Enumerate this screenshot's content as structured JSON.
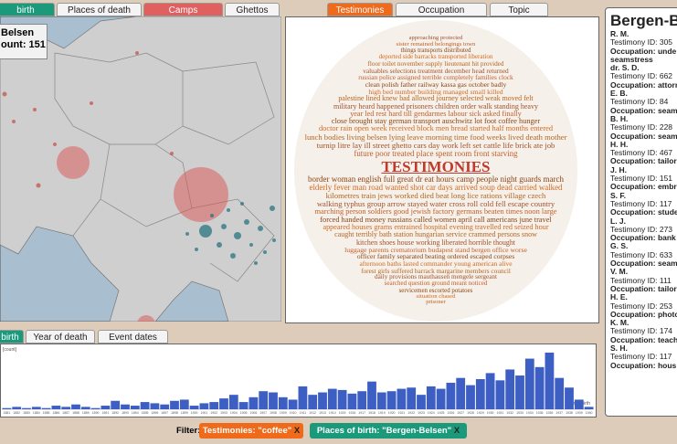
{
  "top_tabs_left": [
    "birth",
    "Places of death",
    "Camps",
    "Ghettos"
  ],
  "map_box": {
    "place": "Belsen",
    "count": "ount: 151"
  },
  "center_tabs": [
    "Testimonies",
    "Occupation",
    "Topic"
  ],
  "word_cloud": {
    "title": "TESTIMONIES",
    "lines": [
      "approaching protected",
      "sister remained belongings town",
      "things transports distributed",
      "deported side barracks transported liberation",
      "floor toilet november supply lieutenant hit provided",
      "valuables selections treatment december head returned",
      "russian police assigned terrible completely families clock",
      "clean polish father railway kassa gas october badly",
      "high bed number building managed small killed",
      "palestine lined knew bad allowed journey selected weak moved felt",
      "military heard happened prisoners children order walk standing heavy",
      "year led rest hard till gendarmes labour sick asked finally",
      "close brought stay german transport auschwitz lot foot coffee hunger",
      "doctor rain open week received block men bread started half months entered",
      "lunch bodies living belsen lying leave morning time food weeks lived death mother",
      "turnip litre lay ill street ghetto cars day work left set cattle life brick ate job",
      "future poor treated place spent room front starving",
      "border woman english full great dr eat hours camp people night guards march",
      "elderly fever man road wanted shot car days arrived soup dead carried walked",
      "kilometres train jews worked died beat long lice rations village czech",
      "walking typhus group arrow stayed water cross roll cold fell escape country",
      "marching person soldiers good jewish factory germans beaten times noon large",
      "forced handed money russians called women april call americans june travel",
      "appeared houses grams entrained hospital evening travelled red seized hour",
      "caught terribly bath station hungarian service crammed persons snow",
      "kitchen shoes house working liberated horrible thought",
      "luggage parents crematorium budapest stand bergen office worse",
      "officer family separated beating ordered escaped corpses",
      "afternoon baths lasted commander young american alive",
      "forest girls suffered barrack margarine members council",
      "daily provisions mauthausen mengele sergeant",
      "searched question ground meant noticed",
      "servicemen escorted potatoes",
      "situation chased",
      "prisoner"
    ]
  },
  "bottom_tabs": [
    "birth",
    "Year of death",
    "Event dates"
  ],
  "chart_data": {
    "type": "bar",
    "y_label": "[count]",
    "x_label": "Year of birth",
    "color": "#3d5fc4",
    "ylim": [
      0,
      50
    ],
    "categories": [
      "1881",
      "1882",
      "1883",
      "1884",
      "1885",
      "1886",
      "1887",
      "1888",
      "1889",
      "1890",
      "1891",
      "1892",
      "1893",
      "1894",
      "1895",
      "1896",
      "1897",
      "1898",
      "1899",
      "1900",
      "1901",
      "1902",
      "1903",
      "1904",
      "1905",
      "1906",
      "1907",
      "1908",
      "1909",
      "1910",
      "1911",
      "1912",
      "1913",
      "1914",
      "1915",
      "1916",
      "1917",
      "1918",
      "1919",
      "1920",
      "1921",
      "1922",
      "1923",
      "1924",
      "1925",
      "1926",
      "1927",
      "1928",
      "1929",
      "1930",
      "1931",
      "1932",
      "1933",
      "1934",
      "1935",
      "1936",
      "1937",
      "1938",
      "1939",
      "1940"
    ],
    "values": [
      1,
      2,
      1,
      2,
      1,
      3,
      2,
      4,
      2,
      1,
      3,
      7,
      4,
      3,
      6,
      5,
      4,
      7,
      8,
      3,
      5,
      6,
      9,
      12,
      6,
      10,
      15,
      14,
      10,
      8,
      19,
      12,
      14,
      17,
      16,
      13,
      15,
      23,
      14,
      15,
      17,
      18,
      12,
      19,
      17,
      22,
      26,
      20,
      25,
      30,
      24,
      33,
      28,
      42,
      35,
      47,
      26,
      18,
      8,
      2
    ]
  },
  "filter": {
    "label": "Filter:",
    "chips": [
      {
        "text": "Testimonies: \"coffee\"",
        "close": "X"
      },
      {
        "text": "Places of birth: \"Bergen-Belsen\"",
        "close": "X"
      }
    ]
  },
  "detail": {
    "title": "Bergen-Bel",
    "items": [
      {
        "name": "R. M.",
        "id": "Testimony ID: 305",
        "occupation": "Occupation: unde",
        "extra": "seamstress"
      },
      {
        "name": "dr. S. D.",
        "id": "Testimony ID: 662",
        "occupation": "Occupation: attorn"
      },
      {
        "name": "E. B.",
        "id": "Testimony ID: 84",
        "occupation": "Occupation: seam"
      },
      {
        "name": "B. H.",
        "id": "Testimony ID: 228",
        "occupation": "Occupation: seam"
      },
      {
        "name": "H. H.",
        "id": "Testimony ID: 467",
        "occupation": "Occupation: tailor"
      },
      {
        "name": "J. H.",
        "id": "Testimony ID: 151",
        "occupation": "Occupation: embr"
      },
      {
        "name": "S. F.",
        "id": "Testimony ID: 117",
        "occupation": "Occupation: stude"
      },
      {
        "name": "L. J.",
        "id": "Testimony ID: 273",
        "occupation": "Occupation: bank"
      },
      {
        "name": "G. S.",
        "id": "Testimony ID: 633",
        "occupation": "Occupation: seam"
      },
      {
        "name": "V. M.",
        "id": "Testimony ID: 111",
        "occupation": "Occupation: tailor"
      },
      {
        "name": "H. E.",
        "id": "Testimony ID: 253",
        "occupation": "Occupation: photo"
      },
      {
        "name": "K. M.",
        "id": "Testimony ID: 174",
        "occupation": "Occupation: teach"
      },
      {
        "name": "S. H.",
        "id": "Testimony ID: 117",
        "occupation": "Occupation: hous"
      }
    ]
  }
}
